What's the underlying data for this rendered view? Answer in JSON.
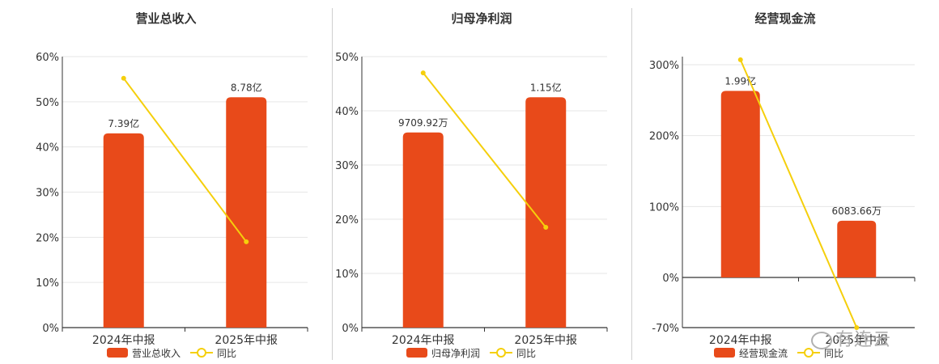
{
  "chart_data": [
    {
      "type": "bar",
      "title": "营业总收入",
      "categories": [
        "2024年中报",
        "2025年中报"
      ],
      "bar_name": "营业总收入",
      "line_name": "同比",
      "bar_labels": [
        "7.39亿",
        "8.78亿"
      ],
      "bar_pct": [
        43,
        51
      ],
      "line_values": [
        55.2,
        19
      ],
      "y_ticks": [
        "0%",
        "10%",
        "20%",
        "30%",
        "40%",
        "50%",
        "60%"
      ],
      "ylim": [
        0,
        60
      ]
    },
    {
      "type": "bar",
      "title": "归母净利润",
      "categories": [
        "2024年中报",
        "2025年中报"
      ],
      "bar_name": "归母净利润",
      "line_name": "同比",
      "bar_labels": [
        "9709.92万",
        "1.15亿"
      ],
      "bar_pct": [
        36,
        42.5
      ],
      "line_values": [
        47,
        18.5
      ],
      "y_ticks": [
        "0%",
        "10%",
        "20%",
        "30%",
        "40%",
        "50%"
      ],
      "ylim": [
        0,
        50
      ]
    },
    {
      "type": "bar",
      "title": "经营现金流",
      "categories": [
        "2024年中报",
        "2025年中报"
      ],
      "bar_name": "经营现金流",
      "line_name": "同比",
      "bar_labels": [
        "1.99亿",
        "6083.66万"
      ],
      "bar_pct": [
        263,
        80
      ],
      "line_values": [
        307,
        -70
      ],
      "y_ticks": [
        "-70%",
        "0%",
        "100%",
        "200%",
        "300%"
      ],
      "y_tick_values": [
        -70,
        0,
        100,
        200,
        300
      ],
      "ylim": [
        -70,
        310
      ]
    }
  ],
  "colors": {
    "bar": "#e84a1a",
    "line": "#f5cf0c",
    "axis": "#333333",
    "grid": "#e6e6e6"
  },
  "watermark": "有连云"
}
